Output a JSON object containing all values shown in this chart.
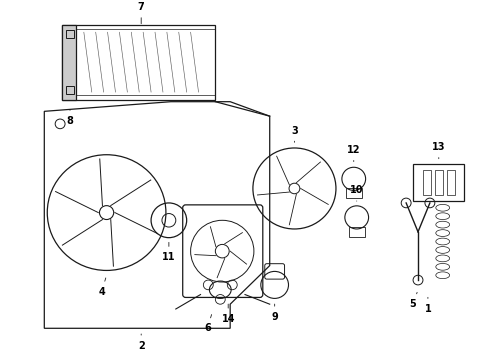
{
  "bg_color": "#ffffff",
  "line_color": "#1a1a1a",
  "label_color": "#000000",
  "label_fontsize": 7,
  "label_fontweight": "bold"
}
